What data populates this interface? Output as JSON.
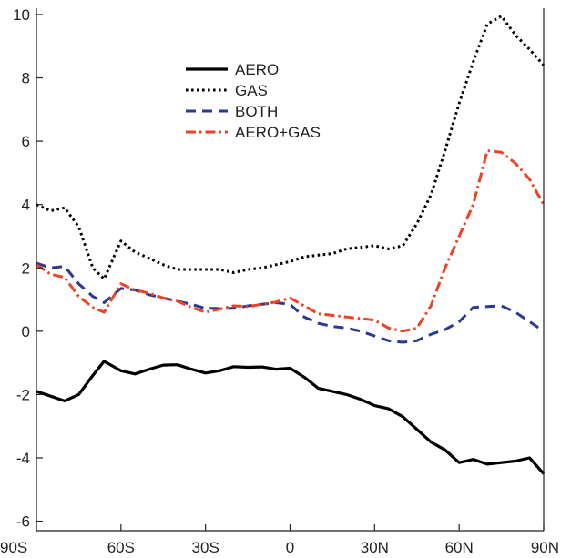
{
  "chart_data": {
    "type": "line",
    "title": "",
    "xlabel": "",
    "ylabel": "",
    "xlim": [
      -90,
      90
    ],
    "ylim": [
      -6.3,
      10.2
    ],
    "x_ticks": [
      -90,
      -60,
      -30,
      0,
      30,
      60,
      90
    ],
    "x_tick_labels": [
      "90S",
      "60S",
      "30S",
      "0",
      "30N",
      "60N",
      "90N"
    ],
    "y_ticks": [
      -6,
      -4,
      -2,
      0,
      2,
      4,
      6,
      8,
      10
    ],
    "y_tick_labels": [
      "-6",
      "-4",
      "-2",
      "0",
      "2",
      "4",
      "6",
      "8",
      "10"
    ],
    "grid": false,
    "legend_position": "top-center",
    "x": [
      -90,
      -85,
      -80,
      -75,
      -70,
      -66,
      -60,
      -55,
      -50,
      -45,
      -40,
      -35,
      -30,
      -25,
      -20,
      -15,
      -10,
      -5,
      0,
      5,
      10,
      15,
      20,
      25,
      30,
      35,
      40,
      45,
      50,
      55,
      60,
      65,
      70,
      75,
      80,
      85,
      90
    ],
    "series": [
      {
        "name": "AERO",
        "color": "#000000",
        "style": "solid",
        "values": [
          -1.9,
          -2.05,
          -2.2,
          -2.0,
          -1.4,
          -0.95,
          -1.25,
          -1.35,
          -1.2,
          -1.07,
          -1.06,
          -1.2,
          -1.32,
          -1.25,
          -1.12,
          -1.14,
          -1.13,
          -1.2,
          -1.17,
          -1.45,
          -1.8,
          -1.9,
          -2.0,
          -2.15,
          -2.35,
          -2.45,
          -2.7,
          -3.1,
          -3.5,
          -3.75,
          -4.15,
          -4.05,
          -4.2,
          -4.15,
          -4.1,
          -4.0,
          -4.5
        ]
      },
      {
        "name": "GAS",
        "color": "#000000",
        "style": "dotted",
        "values": [
          4.0,
          3.8,
          3.9,
          3.3,
          2.0,
          1.65,
          2.85,
          2.5,
          2.3,
          2.1,
          1.95,
          1.95,
          1.95,
          1.95,
          1.85,
          1.95,
          2.0,
          2.1,
          2.2,
          2.35,
          2.4,
          2.45,
          2.6,
          2.65,
          2.7,
          2.6,
          2.7,
          3.4,
          4.3,
          5.7,
          7.2,
          8.5,
          9.7,
          9.95,
          9.35,
          8.9,
          8.4
        ]
      },
      {
        "name": "BOTH",
        "color": "#2b3990",
        "style": "dashed",
        "values": [
          2.15,
          2.0,
          2.05,
          1.5,
          1.1,
          0.9,
          1.35,
          1.3,
          1.15,
          1.05,
          0.95,
          0.85,
          0.72,
          0.72,
          0.72,
          0.8,
          0.85,
          0.9,
          0.85,
          0.45,
          0.25,
          0.15,
          0.1,
          0.0,
          -0.15,
          -0.3,
          -0.35,
          -0.3,
          -0.1,
          0.05,
          0.3,
          0.75,
          0.78,
          0.8,
          0.6,
          0.3,
          0.0
        ]
      },
      {
        "name": "AERO+GAS",
        "color": "#ef4123",
        "style": "dashdot",
        "values": [
          2.1,
          1.8,
          1.7,
          1.1,
          0.75,
          0.6,
          1.5,
          1.3,
          1.2,
          1.05,
          0.95,
          0.75,
          0.6,
          0.7,
          0.8,
          0.78,
          0.85,
          0.92,
          1.05,
          0.8,
          0.55,
          0.5,
          0.45,
          0.4,
          0.35,
          0.1,
          0.0,
          0.1,
          0.8,
          2.0,
          3.0,
          4.0,
          5.7,
          5.65,
          5.3,
          4.8,
          4.0
        ]
      }
    ]
  }
}
